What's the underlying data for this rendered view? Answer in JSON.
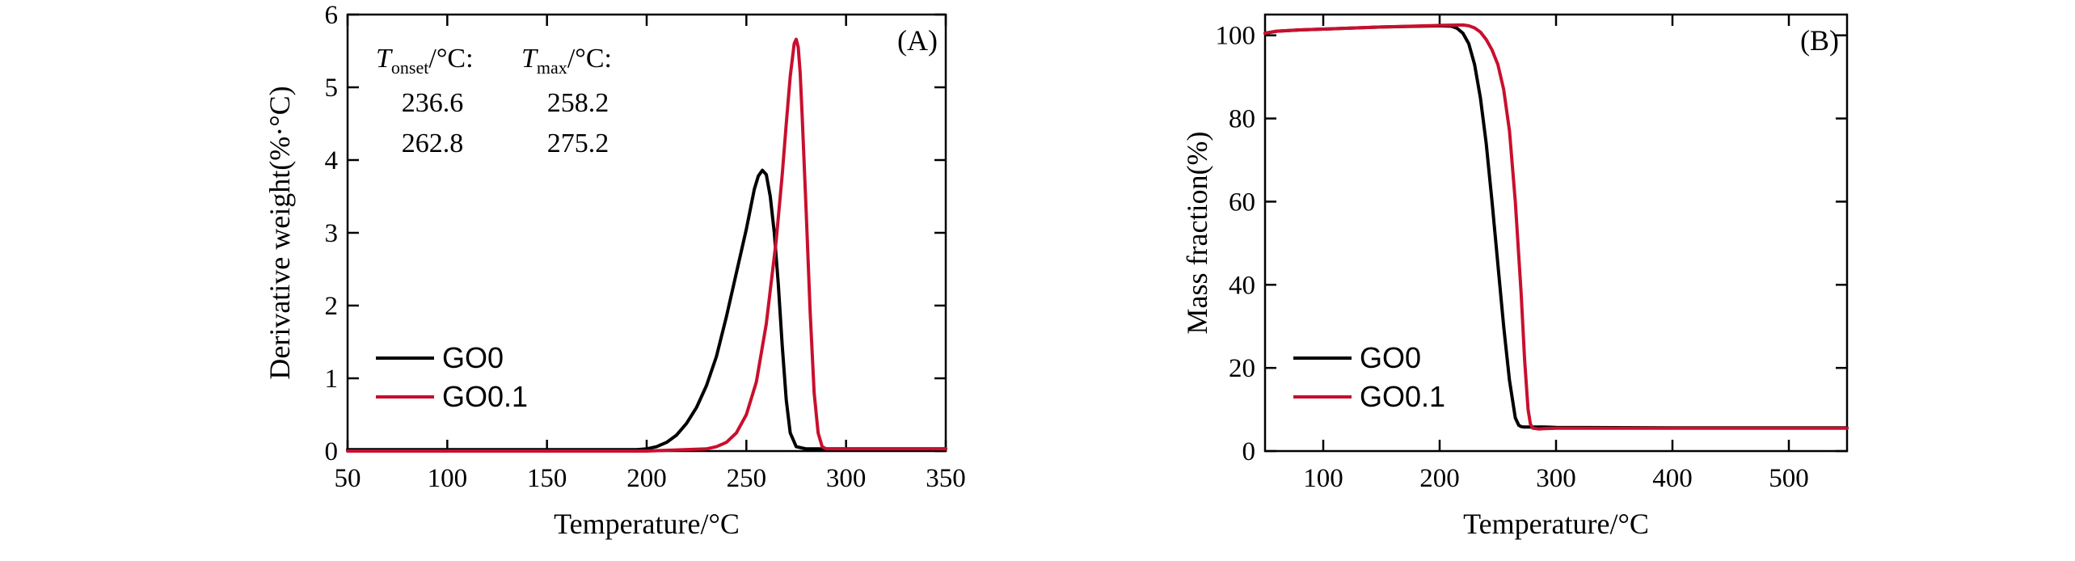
{
  "chart_data": [
    {
      "type": "line",
      "panel_label": "(A)",
      "xlabel": "Temperature/°C",
      "ylabel": "Derivative weight(%·°C)",
      "xlim": [
        50,
        350
      ],
      "ylim": [
        0,
        6
      ],
      "xticks": [
        50,
        100,
        150,
        200,
        250,
        300,
        350
      ],
      "yticks": [
        0,
        1,
        2,
        3,
        4,
        5,
        6
      ],
      "legend_position": "bottom-left",
      "annotation": {
        "col1_header_main": "T",
        "col1_header_sub": "onset",
        "col1_header_unit": "/°C:",
        "col2_header_main": "T",
        "col2_header_sub": "max",
        "col2_header_unit": "/°C:",
        "rows": [
          [
            "236.6",
            "258.2"
          ],
          [
            "262.8",
            "275.2"
          ]
        ]
      },
      "series": [
        {
          "name": "GO0",
          "color": "#000000",
          "x": [
            50,
            150,
            195,
            200,
            205,
            210,
            215,
            220,
            225,
            230,
            235,
            240,
            245,
            250,
            254,
            256,
            258,
            260,
            262,
            264,
            266,
            268,
            270,
            272,
            275,
            280,
            300,
            350
          ],
          "y": [
            0.02,
            0.02,
            0.02,
            0.03,
            0.06,
            0.12,
            0.22,
            0.38,
            0.6,
            0.9,
            1.3,
            1.85,
            2.45,
            3.05,
            3.6,
            3.78,
            3.86,
            3.8,
            3.5,
            3.0,
            2.3,
            1.45,
            0.7,
            0.25,
            0.06,
            0.03,
            0.03,
            0.03
          ]
        },
        {
          "name": "GO0.1",
          "color": "#c8102e",
          "x": [
            50,
            200,
            230,
            235,
            240,
            245,
            250,
            255,
            260,
            265,
            268,
            270,
            272,
            274,
            275,
            276,
            277,
            278,
            280,
            282,
            284,
            286,
            288,
            290,
            300,
            350
          ],
          "y": [
            0.0,
            0.0,
            0.03,
            0.06,
            0.12,
            0.25,
            0.5,
            0.95,
            1.75,
            2.9,
            3.8,
            4.5,
            5.15,
            5.6,
            5.66,
            5.55,
            5.2,
            4.6,
            3.3,
            1.9,
            0.8,
            0.25,
            0.06,
            0.03,
            0.03,
            0.03
          ]
        }
      ]
    },
    {
      "type": "line",
      "panel_label": "(B)",
      "xlabel": "Temperature/°C",
      "ylabel": "Mass fraction(%)",
      "xlim": [
        50,
        550
      ],
      "ylim": [
        0,
        105
      ],
      "xticks": [
        100,
        200,
        300,
        400,
        500
      ],
      "yticks": [
        0,
        20,
        40,
        60,
        80,
        100
      ],
      "legend_position": "bottom-left",
      "series": [
        {
          "name": "GO0",
          "color": "#000000",
          "x": [
            50,
            60,
            80,
            100,
            150,
            200,
            210,
            215,
            220,
            225,
            230,
            235,
            240,
            245,
            250,
            255,
            260,
            265,
            268,
            270,
            272,
            275,
            280,
            290,
            300,
            400,
            550
          ],
          "y": [
            100.5,
            101.0,
            101.3,
            101.5,
            102.0,
            102.3,
            102.2,
            101.7,
            100.5,
            98.0,
            93.0,
            85.0,
            74.0,
            60.0,
            45.0,
            30.0,
            17.0,
            8.0,
            6.2,
            5.9,
            5.8,
            5.8,
            5.8,
            5.8,
            5.7,
            5.6,
            5.6
          ]
        },
        {
          "name": "GO0.1",
          "color": "#c8102e",
          "x": [
            50,
            60,
            80,
            100,
            150,
            200,
            220,
            225,
            230,
            235,
            240,
            245,
            250,
            255,
            260,
            265,
            270,
            273,
            276,
            278,
            280,
            285,
            290,
            300,
            400,
            550
          ],
          "y": [
            100.5,
            101.0,
            101.3,
            101.5,
            102.0,
            102.4,
            102.5,
            102.3,
            101.8,
            100.8,
            99.0,
            96.5,
            93.0,
            87.0,
            77.0,
            60.0,
            38.0,
            22.0,
            10.0,
            6.5,
            5.5,
            5.3,
            5.4,
            5.5,
            5.5,
            5.5
          ]
        }
      ]
    }
  ]
}
